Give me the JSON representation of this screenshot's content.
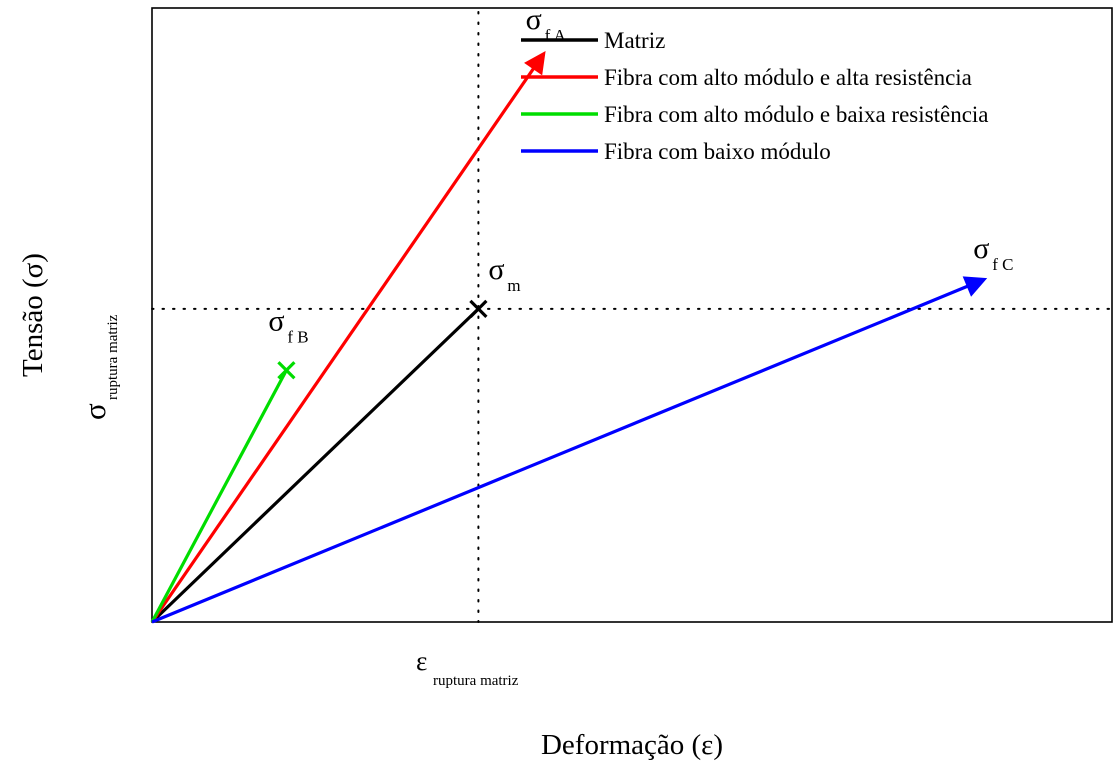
{
  "chart_data": {
    "type": "line",
    "title": "",
    "xlabel": "Deformação (ε)",
    "ylabel": "Tensão (σ)",
    "xlim": [
      0,
      1
    ],
    "ylim": [
      0,
      1
    ],
    "x_marker": {
      "symbol": "ε",
      "subscript": "ruptura matriz",
      "value": 0.34
    },
    "y_marker": {
      "symbol": "σ",
      "subscript": "ruptura matriz",
      "value": 0.51
    },
    "legend_position": "top-right",
    "series": [
      {
        "name": "Matriz",
        "color": "#000000",
        "end_marker": "x",
        "x": [
          0,
          0.34
        ],
        "y": [
          0,
          0.51
        ],
        "label_symbol": "σ",
        "label_subscript": "m"
      },
      {
        "name": "Fibra com alto módulo e alta resistência",
        "color": "#ff0000",
        "end_marker": "arrow",
        "x": [
          0,
          0.41
        ],
        "y": [
          0,
          0.93
        ],
        "label_symbol": "σ",
        "label_subscript": "f A"
      },
      {
        "name": "Fibra com alto módulo e baixa resistência",
        "color": "#00dd00",
        "end_marker": "x",
        "x": [
          0,
          0.14
        ],
        "y": [
          0,
          0.41
        ],
        "label_symbol": "σ",
        "label_subscript": "f B"
      },
      {
        "name": "Fibra com baixo módulo",
        "color": "#0000ff",
        "end_marker": "arrow",
        "x": [
          0,
          0.87
        ],
        "y": [
          0,
          0.56
        ],
        "label_symbol": "σ",
        "label_subscript": "f C"
      }
    ]
  }
}
